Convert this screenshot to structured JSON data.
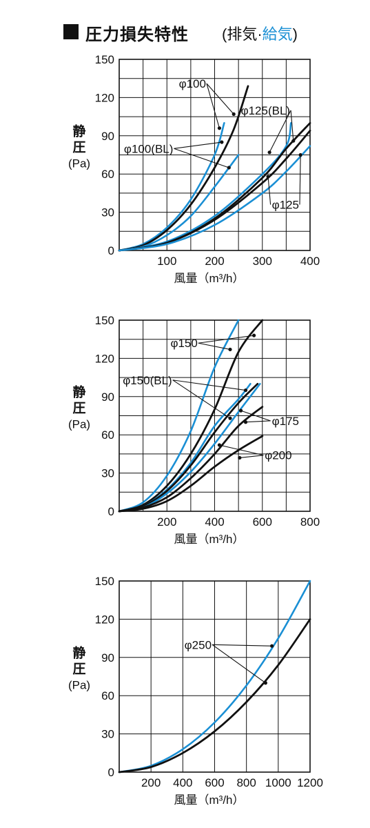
{
  "header": {
    "title": "圧力損失特性",
    "subtitle_open": "(",
    "subtitle_black": "排気·",
    "subtitle_blue": "給気",
    "subtitle_close": ")"
  },
  "colors": {
    "exhaust": "#111111",
    "supply": "#1a8fd4",
    "grid": "#111111"
  },
  "chart_data": [
    {
      "type": "line",
      "xlabel": "風量（m³/h）",
      "ylabel_lines": [
        "静",
        "圧",
        "(Pa)"
      ],
      "xlim": [
        0,
        400
      ],
      "ylim": [
        0,
        150
      ],
      "xticks": [
        100,
        200,
        300,
        400
      ],
      "yticks": [
        0,
        30,
        60,
        90,
        120,
        150
      ],
      "x_grid_step": 50,
      "y_grid_step": 15,
      "series": [
        {
          "group": "φ100",
          "color": "supply",
          "points": [
            [
              0,
              0
            ],
            [
              50,
              5
            ],
            [
              100,
              18
            ],
            [
              150,
              40
            ],
            [
              200,
              75
            ],
            [
              220,
              100
            ]
          ]
        },
        {
          "group": "φ100",
          "color": "exhaust",
          "points": [
            [
              0,
              0
            ],
            [
              50,
              4
            ],
            [
              100,
              16
            ],
            [
              150,
              36
            ],
            [
              200,
              65
            ],
            [
              240,
              95
            ],
            [
              270,
              129
            ]
          ]
        },
        {
          "group": "φ100(BL)",
          "color": "supply",
          "points": [
            [
              0,
              0
            ],
            [
              50,
              3
            ],
            [
              100,
              12
            ],
            [
              150,
              27
            ],
            [
              200,
              50
            ],
            [
              250,
              75
            ]
          ]
        },
        {
          "group": "φ125(BL)",
          "color": "supply",
          "points": [
            [
              0,
              0
            ],
            [
              100,
              7
            ],
            [
              200,
              27
            ],
            [
              300,
              60
            ],
            [
              350,
              82
            ],
            [
              360,
              100
            ]
          ]
        },
        {
          "group": "φ125(BL)",
          "color": "exhaust",
          "points": [
            [
              0,
              0
            ],
            [
              100,
              6
            ],
            [
              200,
              25
            ],
            [
              300,
              57
            ],
            [
              350,
              80
            ],
            [
              400,
              100
            ]
          ]
        },
        {
          "group": "φ125",
          "color": "exhaust",
          "points": [
            [
              0,
              0
            ],
            [
              100,
              6
            ],
            [
              200,
              24
            ],
            [
              300,
              53
            ],
            [
              350,
              72
            ],
            [
              400,
              94
            ]
          ]
        },
        {
          "group": "φ125",
          "color": "supply",
          "points": [
            [
              0,
              0
            ],
            [
              100,
              5
            ],
            [
              200,
              20
            ],
            [
              300,
              45
            ],
            [
              350,
              62
            ],
            [
              400,
              82
            ]
          ]
        }
      ],
      "annotations": [
        {
          "text": "φ100",
          "pos": [
            125,
            131
          ],
          "targets": [
            [
              210,
              96
            ],
            [
              240,
              107
            ]
          ]
        },
        {
          "text": "φ125(BL)",
          "pos": [
            255,
            110
          ],
          "targets": [
            [
              315,
              77
            ],
            [
              365,
              86
            ]
          ]
        },
        {
          "text": "φ100(BL)",
          "pos": [
            10,
            80
          ],
          "targets": [
            [
              215,
              85
            ],
            [
              230,
              65
            ]
          ]
        },
        {
          "text": "φ125",
          "pos": [
            320,
            36
          ],
          "targets": [
            [
              312,
              58
            ],
            [
              380,
              75
            ]
          ]
        }
      ]
    },
    {
      "type": "line",
      "xlabel": "風量（m³/h）",
      "ylabel_lines": [
        "静",
        "圧",
        "(Pa)"
      ],
      "xlim": [
        0,
        800
      ],
      "ylim": [
        0,
        150
      ],
      "xticks": [
        200,
        400,
        600,
        800
      ],
      "yticks": [
        0,
        30,
        60,
        90,
        120,
        150
      ],
      "x_grid_step": 100,
      "y_grid_step": 15,
      "series": [
        {
          "group": "φ150",
          "color": "supply",
          "points": [
            [
              0,
              0
            ],
            [
              100,
              7
            ],
            [
              200,
              28
            ],
            [
              300,
              63
            ],
            [
              400,
              113
            ],
            [
              500,
              150
            ]
          ]
        },
        {
          "group": "φ150",
          "color": "exhaust",
          "points": [
            [
              0,
              0
            ],
            [
              100,
              5
            ],
            [
              200,
              20
            ],
            [
              300,
              45
            ],
            [
              400,
              80
            ],
            [
              500,
              125
            ],
            [
              600,
              150
            ]
          ]
        },
        {
          "group": "φ150(BL)",
          "color": "supply",
          "points": [
            [
              0,
              0
            ],
            [
              100,
              4
            ],
            [
              200,
              17
            ],
            [
              300,
              38
            ],
            [
              400,
              67
            ],
            [
              500,
              88
            ],
            [
              550,
              100
            ]
          ]
        },
        {
          "group": "φ150(BL)",
          "color": "exhaust",
          "points": [
            [
              0,
              0
            ],
            [
              100,
              4
            ],
            [
              200,
              16
            ],
            [
              300,
              36
            ],
            [
              400,
              62
            ],
            [
              500,
              85
            ],
            [
              580,
              100
            ]
          ]
        },
        {
          "group": "φ175",
          "color": "supply",
          "points": [
            [
              0,
              0
            ],
            [
              100,
              3
            ],
            [
              200,
              14
            ],
            [
              300,
              31
            ],
            [
              400,
              53
            ],
            [
              500,
              78
            ],
            [
              590,
              100
            ]
          ]
        },
        {
          "group": "φ175",
          "color": "exhaust",
          "points": [
            [
              0,
              0
            ],
            [
              100,
              3
            ],
            [
              200,
              11
            ],
            [
              300,
              26
            ],
            [
              400,
              45
            ],
            [
              500,
              67
            ],
            [
              600,
              82
            ]
          ]
        },
        {
          "group": "φ200",
          "color": "exhaust",
          "points": [
            [
              0,
              0
            ],
            [
              100,
              2
            ],
            [
              200,
              8
            ],
            [
              300,
              20
            ],
            [
              400,
              35
            ],
            [
              500,
              48
            ],
            [
              600,
              59
            ]
          ]
        }
      ],
      "annotations": [
        {
          "text": "φ150",
          "pos": [
            215,
            132
          ],
          "targets": [
            [
              465,
              127
            ],
            [
              565,
              138
            ]
          ]
        },
        {
          "text": "φ150(BL)",
          "pos": [
            15,
            103
          ],
          "targets": [
            [
              530,
              95
            ],
            [
              465,
              73
            ]
          ]
        },
        {
          "text": "φ175",
          "pos": [
            640,
            71
          ],
          "targets": [
            [
              510,
              79
            ],
            [
              530,
              70
            ]
          ]
        },
        {
          "text": "φ200",
          "pos": [
            610,
            44
          ],
          "targets": [
            [
              420,
              52
            ],
            [
              505,
              42
            ]
          ]
        }
      ]
    },
    {
      "type": "line",
      "xlabel": "風量（m³/h）",
      "ylabel_lines": [
        "静",
        "圧",
        "(Pa)"
      ],
      "xlim": [
        0,
        1200
      ],
      "ylim": [
        0,
        150
      ],
      "xticks": [
        200,
        400,
        600,
        800,
        1000,
        1200
      ],
      "yticks": [
        0,
        30,
        60,
        90,
        120,
        150
      ],
      "x_grid_step": 200,
      "y_grid_step": 30,
      "series": [
        {
          "group": "φ250",
          "color": "supply",
          "points": [
            [
              0,
              0
            ],
            [
              200,
              5
            ],
            [
              400,
              18
            ],
            [
              600,
              39
            ],
            [
              800,
              68
            ],
            [
              1000,
              105
            ],
            [
              1200,
              150
            ]
          ]
        },
        {
          "group": "φ250",
          "color": "exhaust",
          "points": [
            [
              0,
              0
            ],
            [
              200,
              4
            ],
            [
              400,
              15
            ],
            [
              600,
              32
            ],
            [
              800,
              55
            ],
            [
              1000,
              84
            ],
            [
              1200,
              120
            ]
          ]
        }
      ],
      "annotations": [
        {
          "text": "φ250",
          "pos": [
            410,
            100
          ],
          "targets": [
            [
              960,
              99
            ],
            [
              920,
              70
            ]
          ]
        }
      ]
    }
  ]
}
